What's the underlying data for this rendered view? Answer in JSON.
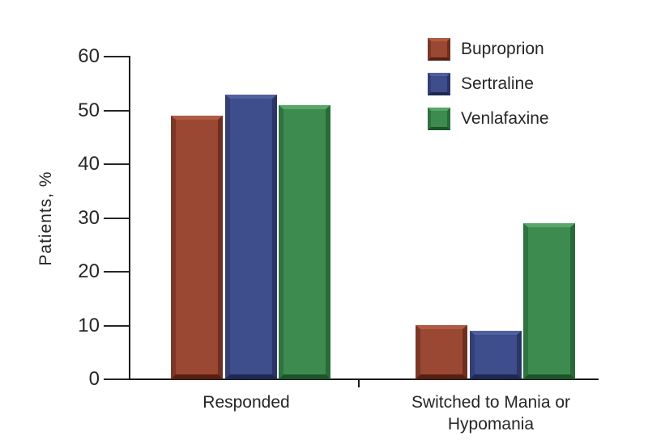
{
  "chart_data": {
    "type": "bar",
    "title": "",
    "ylabel": "Patients, %",
    "categories": [
      "Responded",
      "Switched to Mania or Hypomania"
    ],
    "series": [
      {
        "name": "Buproprion",
        "values": [
          49,
          10
        ],
        "color": "#9A4833",
        "bevel": {
          "top": "#B05B44",
          "left": "#7C3727",
          "right": "#6F2F20",
          "bottom": "#571F12"
        }
      },
      {
        "name": "Sertraline",
        "values": [
          53,
          9
        ],
        "color": "#3E4D8B",
        "bevel": {
          "top": "#5260A0",
          "left": "#333F75",
          "right": "#2B3567",
          "bottom": "#1F2852"
        }
      },
      {
        "name": "Venlafaxine",
        "values": [
          51,
          29
        ],
        "color": "#3E8B50",
        "bevel": {
          "top": "#58A768",
          "left": "#2F7340",
          "right": "#286A38",
          "bottom": "#1B5429"
        }
      }
    ],
    "ylim": [
      0,
      60
    ],
    "yticks": [
      0,
      10,
      20,
      30,
      40,
      50,
      60
    ],
    "grid": false,
    "legend_position": "top-right",
    "axis_color": "#1A1A1A",
    "text_color": "#262626"
  }
}
